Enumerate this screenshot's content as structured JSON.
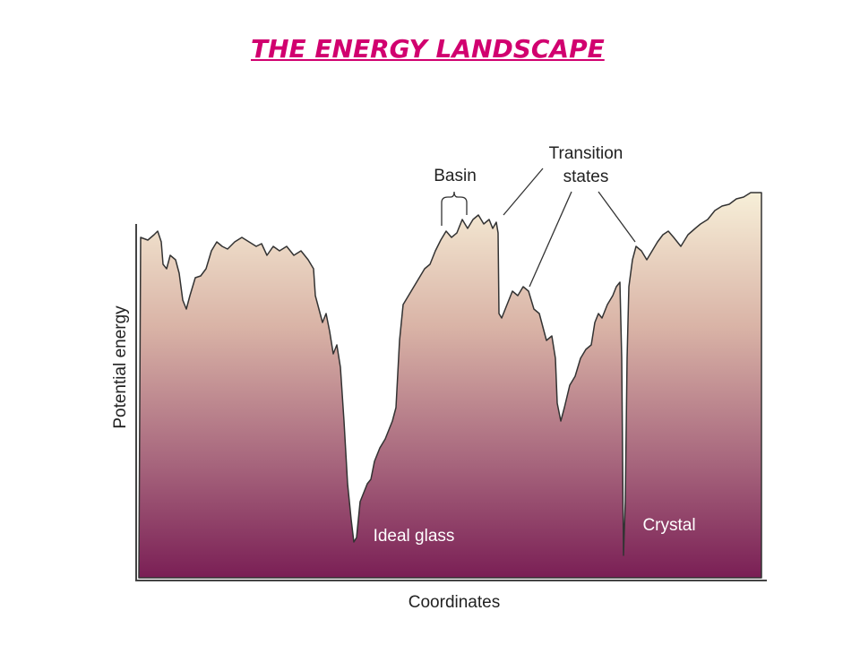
{
  "header": {
    "title": "THE ENERGY LANDSCAPE"
  },
  "figure": {
    "y_axis_label": "Potential energy",
    "x_axis_label": "Coordinates",
    "labels": {
      "basin": "Basin",
      "transition_states": [
        "Transition",
        "states"
      ],
      "ideal_glass": "Ideal glass",
      "crystal": "Crystal"
    }
  }
}
